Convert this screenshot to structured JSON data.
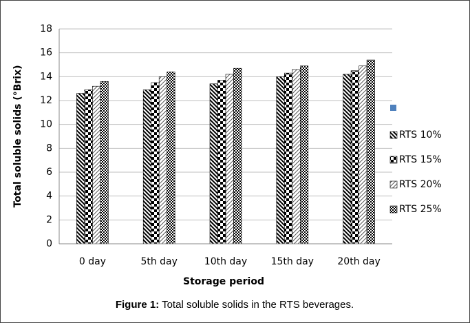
{
  "chart_data": {
    "type": "bar",
    "ylabel": "Total soluble solids (°Brix)",
    "xlabel": "Storage period",
    "caption_label": "Figure 1:",
    "caption_text": "Total soluble solids in the RTS beverages.",
    "categories": [
      "0 day",
      "5th day",
      "10th day",
      "15th day",
      "20th day"
    ],
    "series": [
      {
        "name": "RTS 10%",
        "color": "#000000",
        "values": [
          12.6,
          12.9,
          13.4,
          14.0,
          14.2
        ]
      },
      {
        "name": "RTS 15%",
        "color": "#000000",
        "values": [
          12.9,
          13.5,
          13.7,
          14.3,
          14.5
        ]
      },
      {
        "name": "RTS 20%",
        "color": "#000000",
        "values": [
          13.2,
          14.0,
          14.2,
          14.6,
          14.9
        ]
      },
      {
        "name": "RTS 25%",
        "color": "#000000",
        "values": [
          13.6,
          14.4,
          14.7,
          14.9,
          15.4
        ]
      }
    ],
    "ylim": [
      0,
      18
    ],
    "yticks": [
      0,
      2,
      4,
      6,
      8,
      10,
      12,
      14,
      16,
      18
    ],
    "grid": true,
    "legend": "right"
  }
}
